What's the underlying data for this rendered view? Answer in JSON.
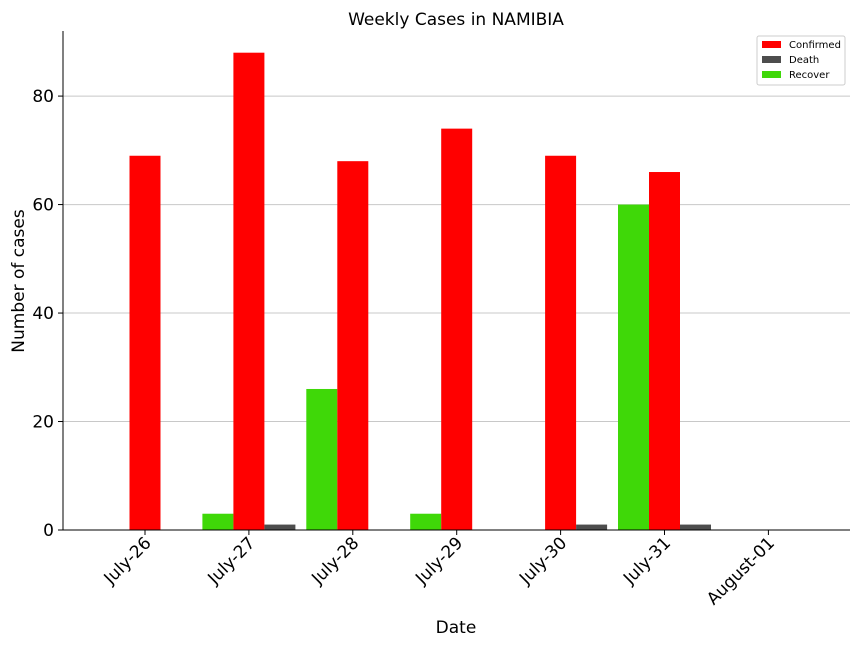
{
  "chart_data": {
    "type": "bar",
    "title": "Weekly Cases in NAMIBIA",
    "xlabel": "Date",
    "ylabel": "Number of cases",
    "categories": [
      "July-26",
      "July-27",
      "July-28",
      "July-29",
      "July-30",
      "July-31",
      "August-01"
    ],
    "series": [
      {
        "name": "Recover",
        "color": "#3fd808",
        "values": [
          0,
          3,
          26,
          3,
          0,
          60,
          0
        ]
      },
      {
        "name": "Confirmed",
        "color": "#ff0000",
        "values": [
          69,
          88,
          68,
          74,
          69,
          66,
          0
        ]
      },
      {
        "name": "Death",
        "color": "#4d4d4d",
        "values": [
          0,
          1,
          0,
          0,
          1,
          1,
          0
        ]
      }
    ],
    "legend_order": [
      "Confirmed",
      "Death",
      "Recover"
    ],
    "legend_position": "top-right",
    "ylim": [
      0,
      92
    ],
    "yticks": [
      0,
      20,
      40,
      60,
      80
    ],
    "grid": "horizontal"
  }
}
